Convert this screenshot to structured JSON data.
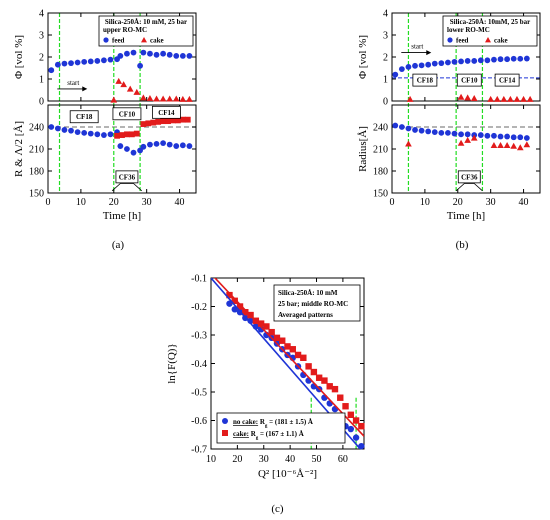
{
  "chart_data": [
    {
      "panel": "a",
      "type": "scatter",
      "panel_label": "(a)",
      "xlabel": "Time [h]",
      "xlim": [
        0,
        45
      ],
      "xticks": [
        0,
        10,
        20,
        30,
        40
      ],
      "top": {
        "ylabel": "Φ [vol %]",
        "ylim": [
          0,
          4
        ],
        "yticks": [
          0,
          1,
          2,
          3,
          4
        ],
        "legend_box": [
          "Silica-250Å: 10 mM, 25 bar",
          "upper RO-MC",
          "feed",
          "cake"
        ],
        "annotations": [
          "start"
        ],
        "series": [
          {
            "name": "feed",
            "marker": "circle",
            "color": "#1f35d6",
            "x": [
              1,
              3,
              5,
              7,
              9,
              11,
              13,
              15,
              17,
              19,
              21,
              22,
              24,
              26,
              28,
              29,
              31,
              33,
              35,
              37,
              39,
              41,
              43
            ],
            "y": [
              1.4,
              1.65,
              1.7,
              1.72,
              1.75,
              1.78,
              1.8,
              1.82,
              1.85,
              1.88,
              1.9,
              2.05,
              2.15,
              2.2,
              1.6,
              2.2,
              2.15,
              2.1,
              2.15,
              2.1,
              2.05,
              2.05,
              2.05
            ]
          },
          {
            "name": "cake",
            "marker": "triangle",
            "color": "#e21b1b",
            "x": [
              20,
              21.5,
              23,
              25,
              27,
              29,
              31,
              33,
              35,
              37,
              39,
              41,
              43
            ],
            "y": [
              0.05,
              0.9,
              0.75,
              0.55,
              0.4,
              0.15,
              0.12,
              0.1,
              0.1,
              0.1,
              0.1,
              0.08,
              0.08
            ]
          }
        ]
      },
      "bottom": {
        "ylabel": "R & Λ/2 [Å]",
        "ylim": [
          150,
          270
        ],
        "yticks": [
          150,
          180,
          210,
          240
        ],
        "reference_line": 240,
        "labels": [
          "CF18",
          "CF10",
          "CF14",
          "CF36"
        ],
        "series": [
          {
            "name": "feed",
            "marker": "circle",
            "color": "#1f35d6",
            "x": [
              1,
              3,
              5,
              7,
              9,
              11,
              13,
              15,
              17,
              19,
              21,
              22,
              24,
              26,
              28,
              29,
              31,
              33,
              35,
              37,
              39,
              41,
              43
            ],
            "y": [
              240,
              238,
              236,
              235,
              233,
              232,
              231,
              230,
              229,
              230,
              233,
              214,
              210,
              205,
              208,
              213,
              216,
              217,
              218,
              216,
              214,
              215,
              214
            ]
          },
          {
            "name": "cake",
            "marker": "square",
            "color": "#e21b1b",
            "x": [
              21,
              22.5,
              24,
              25.5,
              27,
              29,
              30.5,
              32,
              33.5,
              35,
              36.5,
              38,
              39.5,
              41,
              42.5
            ],
            "y": [
              228,
              229,
              230,
              230,
              231,
              244,
              245,
              246,
              247,
              248,
              248,
              249,
              249,
              250,
              250
            ]
          }
        ]
      },
      "dashed_verticals_x": [
        3.5,
        20,
        28
      ]
    },
    {
      "panel": "b",
      "type": "scatter",
      "panel_label": "(b)",
      "xlabel": "Time [h]",
      "xlim": [
        0,
        45
      ],
      "xticks": [
        0,
        10,
        20,
        30,
        40
      ],
      "top": {
        "ylabel": "Φ [vol %]",
        "ylim": [
          0,
          4
        ],
        "yticks": [
          0,
          1,
          2,
          3,
          4
        ],
        "legend_box": [
          "Silica-250Å: 10mM, 25 bar",
          "lower RO-MC",
          "feed",
          "cake"
        ],
        "annotations": [
          "start"
        ],
        "labels": [
          "CF18",
          "CF10",
          "CF14"
        ],
        "reference_line": 1.05,
        "series": [
          {
            "name": "feed",
            "marker": "circle",
            "color": "#1f35d6",
            "x": [
              1,
              3,
              5,
              7,
              9,
              11,
              13,
              15,
              17,
              19,
              21,
              23,
              25,
              27,
              29,
              31,
              33,
              35,
              37,
              39,
              41
            ],
            "y": [
              1.2,
              1.45,
              1.55,
              1.6,
              1.62,
              1.65,
              1.7,
              1.72,
              1.75,
              1.78,
              1.8,
              1.82,
              1.82,
              1.85,
              1.85,
              1.88,
              1.9,
              1.9,
              1.92,
              1.92,
              1.93
            ]
          },
          {
            "name": "cake",
            "marker": "triangle",
            "color": "#e21b1b",
            "x": [
              5.5,
              21,
              23,
              25,
              30,
              32,
              34,
              36,
              38,
              40,
              42
            ],
            "y": [
              0.08,
              0.18,
              0.15,
              0.12,
              0.08,
              0.08,
              0.08,
              0.08,
              0.08,
              0.08,
              0.08
            ]
          }
        ]
      },
      "bottom": {
        "ylabel": "Radius[Å]",
        "ylim": [
          150,
          270
        ],
        "yticks": [
          150,
          180,
          210,
          240
        ],
        "reference_line": 240,
        "labels": [
          "CF36"
        ],
        "series": [
          {
            "name": "feed",
            "marker": "circle",
            "color": "#1f35d6",
            "x": [
              1,
              3,
              5,
              7,
              9,
              11,
              13,
              15,
              17,
              19,
              21,
              23,
              25,
              27,
              29,
              31,
              33,
              35,
              37,
              39,
              41
            ],
            "y": [
              242,
              240,
              238,
              236,
              235,
              234,
              233,
              232,
              232,
              231,
              230,
              230,
              229,
              229,
              228,
              228,
              227,
              227,
              226,
              226,
              225
            ]
          },
          {
            "name": "cake",
            "marker": "triangle",
            "color": "#e21b1b",
            "x": [
              5,
              21,
              23,
              25,
              31,
              33,
              35,
              37,
              39,
              41
            ],
            "y": [
              217,
              218,
              222,
              225,
              215,
              215,
              215,
              214,
              212,
              216
            ]
          }
        ]
      },
      "dashed_verticals_x": [
        5,
        19.5,
        27.5
      ]
    },
    {
      "panel": "c",
      "type": "scatter",
      "panel_label": "(c)",
      "xlabel": "Q² [10⁻⁶Å⁻²]",
      "ylabel": "ln{F(Q)}",
      "xlim": [
        10,
        68
      ],
      "ylim": [
        -0.7,
        -0.1
      ],
      "xticks": [
        10,
        20,
        30,
        40,
        50,
        60
      ],
      "yticks": [
        -0.7,
        -0.6,
        -0.5,
        -0.4,
        -0.3,
        -0.2,
        -0.1
      ],
      "info_box": [
        "Silica-250Å: 10 mM",
        "25 bar; middle RO-MC",
        "Averaged patterns"
      ],
      "legend": [
        {
          "prefix": "no cake:",
          "value": "R",
          "sub": "g",
          "rest": " = (181 ± 1.5) Å",
          "marker": "circle",
          "color": "#1f35d6"
        },
        {
          "prefix": "cake:",
          "value": "R",
          "sub": "g",
          "rest": " = (167 ± 1.1) Å",
          "marker": "square",
          "color": "#e21b1b"
        }
      ],
      "dashed_verticals_x": [
        48,
        65
      ],
      "series": [
        {
          "name": "no cake",
          "marker": "circle",
          "color": "#1f35d6",
          "x": [
            17,
            19,
            21,
            23,
            25,
            27,
            29,
            31,
            33,
            35,
            37,
            39,
            41,
            43,
            45,
            47,
            49,
            51,
            53,
            55,
            57,
            59,
            61,
            63,
            65,
            67
          ],
          "y": [
            -0.19,
            -0.21,
            -0.22,
            -0.24,
            -0.25,
            -0.27,
            -0.28,
            -0.3,
            -0.31,
            -0.33,
            -0.35,
            -0.37,
            -0.38,
            -0.41,
            -0.44,
            -0.46,
            -0.48,
            -0.49,
            -0.52,
            -0.54,
            -0.56,
            -0.59,
            -0.62,
            -0.63,
            -0.66,
            -0.69
          ]
        },
        {
          "name": "cake",
          "marker": "square",
          "color": "#e21b1b",
          "x": [
            17,
            19,
            21,
            23,
            25,
            27,
            29,
            31,
            33,
            35,
            37,
            39,
            41,
            43,
            45,
            47,
            49,
            51,
            53,
            55,
            57,
            59,
            61,
            63,
            65,
            67
          ],
          "y": [
            -0.16,
            -0.18,
            -0.2,
            -0.22,
            -0.23,
            -0.25,
            -0.26,
            -0.27,
            -0.29,
            -0.31,
            -0.32,
            -0.34,
            -0.35,
            -0.37,
            -0.38,
            -0.41,
            -0.43,
            -0.45,
            -0.46,
            -0.48,
            -0.49,
            -0.52,
            -0.55,
            -0.58,
            -0.6,
            -0.62
          ]
        }
      ],
      "fit_lines": [
        {
          "name": "no cake fit",
          "color": "#1f35d6",
          "x": [
            10,
            68
          ],
          "y": [
            -0.1,
            -0.715
          ]
        },
        {
          "name": "cake fit",
          "color": "#e21b1b",
          "x": [
            10,
            68
          ],
          "y": [
            -0.085,
            -0.655
          ]
        }
      ]
    }
  ]
}
